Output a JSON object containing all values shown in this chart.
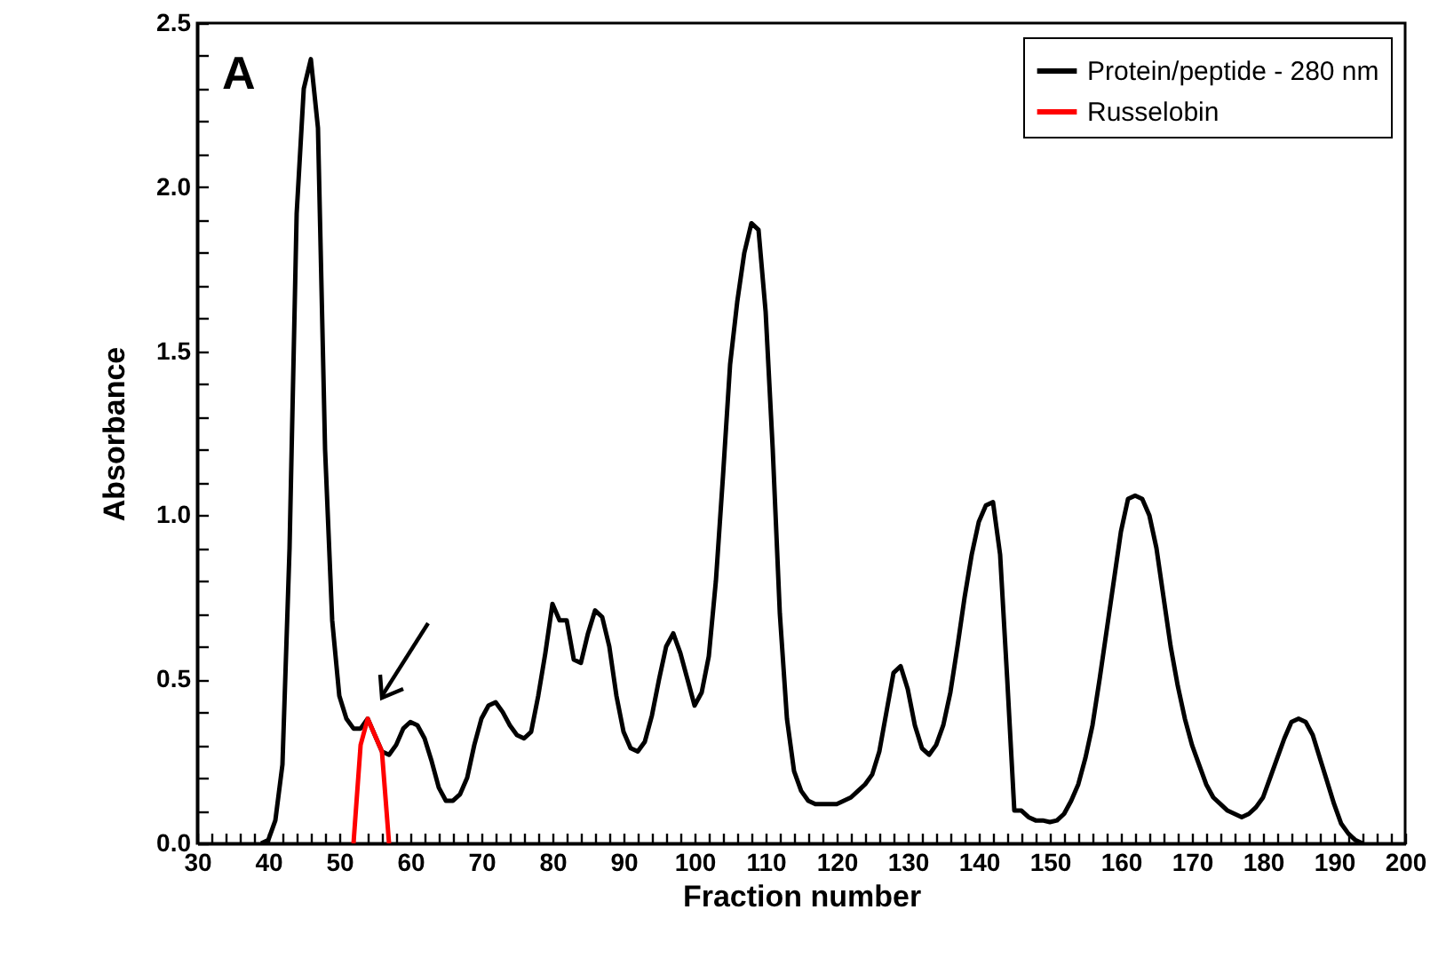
{
  "chart_data": {
    "type": "line",
    "xlabel": "Fraction number",
    "ylabel": "Absorbance",
    "annotations": [
      "A"
    ],
    "xlim": [
      30,
      200
    ],
    "xticks": [
      30,
      {
        "value": 32,
        "label": null
      },
      {
        "value": 34,
        "label": null
      },
      {
        "value": 36,
        "label": null
      },
      {
        "value": 38,
        "label": null
      },
      40,
      {
        "value": 42,
        "label": null
      },
      {
        "value": 44,
        "label": null
      },
      {
        "value": 46,
        "label": null
      },
      {
        "value": 48,
        "label": null
      },
      50,
      {
        "value": 52,
        "label": null
      },
      {
        "value": 54,
        "label": null
      },
      {
        "value": 56,
        "label": null
      },
      {
        "value": 58,
        "label": null
      },
      60,
      {
        "value": 62,
        "label": null
      },
      {
        "value": 64,
        "label": null
      },
      {
        "value": 66,
        "label": null
      },
      {
        "value": 68,
        "label": null
      },
      70,
      {
        "value": 72,
        "label": null
      },
      {
        "value": 74,
        "label": null
      },
      {
        "value": 76,
        "label": null
      },
      {
        "value": 78,
        "label": null
      },
      80,
      {
        "value": 82,
        "label": null
      },
      {
        "value": 84,
        "label": null
      },
      {
        "value": 86,
        "label": null
      },
      {
        "value": 88,
        "label": null
      },
      90,
      {
        "value": 92,
        "label": null
      },
      {
        "value": 94,
        "label": null
      },
      {
        "value": 96,
        "label": null
      },
      {
        "value": 98,
        "label": null
      },
      100,
      {
        "value": 102,
        "label": null
      },
      {
        "value": 104,
        "label": null
      },
      {
        "value": 106,
        "label": null
      },
      {
        "value": 108,
        "label": null
      },
      110,
      {
        "value": 112,
        "label": null
      },
      {
        "value": 114,
        "label": null
      },
      {
        "value": 116,
        "label": null
      },
      {
        "value": 118,
        "label": null
      },
      120,
      {
        "value": 122,
        "label": null
      },
      {
        "value": 124,
        "label": null
      },
      {
        "value": 126,
        "label": null
      },
      {
        "value": 128,
        "label": null
      },
      130,
      {
        "value": 132,
        "label": null
      },
      {
        "value": 134,
        "label": null
      },
      {
        "value": 136,
        "label": null
      },
      {
        "value": 138,
        "label": null
      },
      140,
      {
        "value": 142,
        "label": null
      },
      {
        "value": 144,
        "label": null
      },
      {
        "value": 146,
        "label": null
      },
      {
        "value": 148,
        "label": null
      },
      150,
      {
        "value": 152,
        "label": null
      },
      {
        "value": 154,
        "label": null
      },
      {
        "value": 156,
        "label": null
      },
      {
        "value": 158,
        "label": null
      },
      160,
      {
        "value": 162,
        "label": null
      },
      {
        "value": 164,
        "label": null
      },
      {
        "value": 166,
        "label": null
      },
      {
        "value": 168,
        "label": null
      },
      170,
      {
        "value": 172,
        "label": null
      },
      {
        "value": 174,
        "label": null
      },
      {
        "value": 176,
        "label": null
      },
      {
        "value": 178,
        "label": null
      },
      180,
      {
        "value": 182,
        "label": null
      },
      {
        "value": 184,
        "label": null
      },
      {
        "value": 186,
        "label": null
      },
      {
        "value": 188,
        "label": null
      },
      190,
      {
        "value": 192,
        "label": null
      },
      {
        "value": 194,
        "label": null
      },
      {
        "value": 196,
        "label": null
      },
      {
        "value": 198,
        "label": null
      },
      200
    ],
    "ylim": [
      0,
      2.5
    ],
    "yticks": [
      {
        "value": 0,
        "label": "0.0"
      },
      {
        "value": 0.1,
        "label": null
      },
      {
        "value": 0.2,
        "label": null
      },
      {
        "value": 0.3,
        "label": null
      },
      {
        "value": 0.4,
        "label": null
      },
      0.5,
      {
        "value": 0.6,
        "label": null
      },
      {
        "value": 0.7,
        "label": null
      },
      {
        "value": 0.8,
        "label": null
      },
      {
        "value": 0.9,
        "label": null
      },
      {
        "value": 1,
        "label": "1.0"
      },
      {
        "value": 1.1,
        "label": null
      },
      {
        "value": 1.2,
        "label": null
      },
      {
        "value": 1.3,
        "label": null
      },
      {
        "value": 1.4,
        "label": null
      },
      1.5,
      {
        "value": 1.6,
        "label": null
      },
      {
        "value": 1.7,
        "label": null
      },
      {
        "value": 1.8,
        "label": null
      },
      {
        "value": 1.9,
        "label": null
      },
      {
        "value": 2,
        "label": "2.0"
      },
      {
        "value": 2.1,
        "label": null
      },
      {
        "value": 2.2,
        "label": null
      },
      {
        "value": 2.3,
        "label": null
      },
      {
        "value": 2.4,
        "label": null
      },
      2.5
    ],
    "legend": "top right",
    "marker": "none",
    "line_style": "solid",
    "series": [
      {
        "name": "Protein/peptide - 280 nm",
        "color": "#000000",
        "x": [
          39,
          40,
          41,
          42,
          43,
          44,
          45,
          46,
          47,
          48,
          49,
          50,
          51,
          52,
          53,
          54,
          55,
          56,
          57,
          58,
          59,
          60,
          61,
          62,
          63,
          64,
          65,
          66,
          67,
          68,
          69,
          70,
          71,
          72,
          73,
          74,
          75,
          76,
          77,
          78,
          79,
          80,
          81,
          82,
          83,
          84,
          85,
          86,
          87,
          88,
          89,
          90,
          91,
          92,
          93,
          94,
          95,
          96,
          97,
          98,
          99,
          100,
          101,
          102,
          103,
          104,
          105,
          106,
          107,
          108,
          109,
          110,
          111,
          112,
          113,
          114,
          115,
          116,
          117,
          118,
          119,
          120,
          121,
          122,
          123,
          124,
          125,
          126,
          127,
          128,
          129,
          130,
          131,
          132,
          133,
          134,
          135,
          136,
          137,
          138,
          139,
          140,
          141,
          142,
          143,
          144,
          145,
          146,
          147,
          148,
          149,
          150,
          151,
          152,
          153,
          154,
          155,
          156,
          157,
          158,
          159,
          160,
          161,
          162,
          163,
          164,
          165,
          166,
          167,
          168,
          169,
          170,
          171,
          172,
          173,
          174,
          175,
          176,
          177,
          178,
          179,
          180,
          181,
          182,
          183,
          184,
          185,
          186,
          187,
          188,
          189,
          190,
          191,
          192,
          193,
          194
        ],
        "values": [
          0,
          0.01,
          0.07,
          0.24,
          0.9,
          1.92,
          2.3,
          2.39,
          2.18,
          1.2,
          0.68,
          0.45,
          0.38,
          0.35,
          0.35,
          0.38,
          0.33,
          0.28,
          0.27,
          0.3,
          0.35,
          0.37,
          0.36,
          0.32,
          0.25,
          0.17,
          0.13,
          0.13,
          0.15,
          0.2,
          0.3,
          0.38,
          0.42,
          0.43,
          0.4,
          0.36,
          0.33,
          0.32,
          0.34,
          0.45,
          0.58,
          0.73,
          0.68,
          0.68,
          0.56,
          0.55,
          0.64,
          0.71,
          0.69,
          0.6,
          0.45,
          0.34,
          0.29,
          0.28,
          0.31,
          0.39,
          0.5,
          0.6,
          0.64,
          0.58,
          0.5,
          0.42,
          0.46,
          0.57,
          0.8,
          1.12,
          1.46,
          1.65,
          1.8,
          1.89,
          1.87,
          1.62,
          1.2,
          0.7,
          0.38,
          0.22,
          0.16,
          0.13,
          0.12,
          0.12,
          0.12,
          0.12,
          0.13,
          0.14,
          0.16,
          0.18,
          0.21,
          0.28,
          0.4,
          0.52,
          0.54,
          0.47,
          0.36,
          0.29,
          0.27,
          0.3,
          0.36,
          0.46,
          0.6,
          0.75,
          0.88,
          0.98,
          1.03,
          1.04,
          0.88,
          0.5,
          0.1,
          0.1,
          0.08,
          0.07,
          0.07,
          0.065,
          0.07,
          0.09,
          0.13,
          0.18,
          0.26,
          0.36,
          0.5,
          0.65,
          0.8,
          0.95,
          1.05,
          1.06,
          1.05,
          1,
          0.9,
          0.75,
          0.6,
          0.48,
          0.38,
          0.3,
          0.24,
          0.18,
          0.14,
          0.12,
          0.1,
          0.09,
          0.08,
          0.09,
          0.11,
          0.14,
          0.2,
          0.26,
          0.32,
          0.37,
          0.38,
          0.37,
          0.33,
          0.26,
          0.19,
          0.12,
          0.06,
          0.03,
          0.01,
          0
        ]
      },
      {
        "name": "Russelobin",
        "color": "#ff0000",
        "x": [
          52,
          53,
          54,
          55,
          56,
          57
        ],
        "values": [
          0,
          0.3,
          0.38,
          0.33,
          0.28,
          0
        ]
      }
    ]
  }
}
